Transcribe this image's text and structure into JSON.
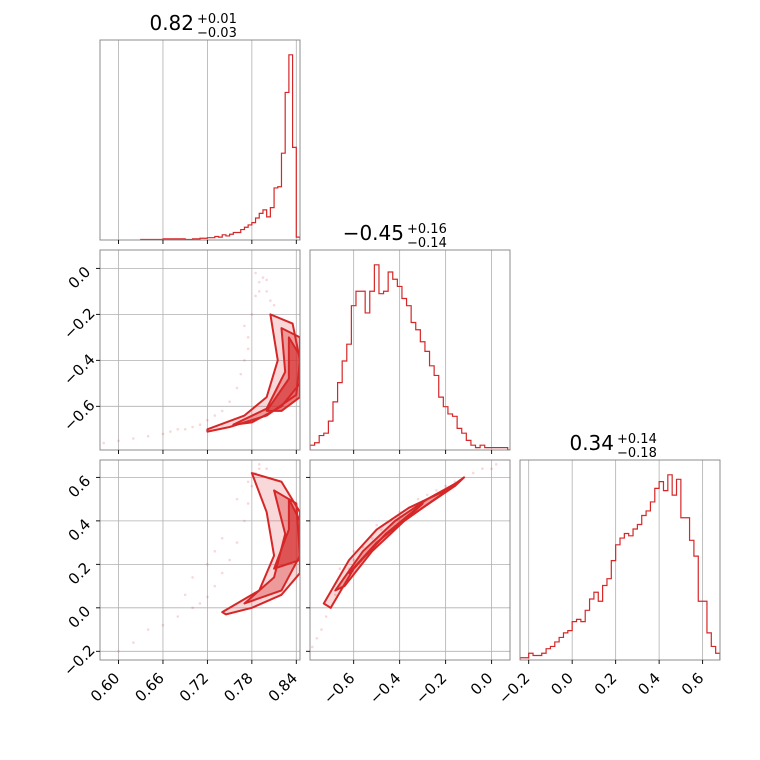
{
  "chart_data": {
    "type": "corner",
    "color": "#d62728",
    "grid": true,
    "parameters": [
      {
        "range": [
          0.575,
          0.845
        ],
        "ticks": [
          0.6,
          0.66,
          0.72,
          0.78,
          0.84
        ],
        "tick_labels": [
          "0.60",
          "0.66",
          "0.72",
          "0.78",
          "0.84"
        ],
        "title": {
          "value": "0.82",
          "plus": "+0.01",
          "minus": "−0.03"
        },
        "histogram": {
          "edges": [
            0.63,
            0.64,
            0.65,
            0.66,
            0.67,
            0.68,
            0.69,
            0.7,
            0.71,
            0.72,
            0.725,
            0.73,
            0.735,
            0.74,
            0.745,
            0.75,
            0.755,
            0.76,
            0.765,
            0.77,
            0.775,
            0.78,
            0.785,
            0.79,
            0.795,
            0.8,
            0.805,
            0.81,
            0.815,
            0.82,
            0.825,
            0.83,
            0.835,
            0.84,
            0.845
          ],
          "counts": [
            1,
            1,
            1,
            2,
            2,
            2,
            1,
            2,
            3,
            4,
            4,
            6,
            5,
            9,
            7,
            10,
            13,
            13,
            18,
            22,
            26,
            30,
            38,
            46,
            52,
            40,
            56,
            90,
            92,
            150,
            255,
            320,
            160,
            5
          ]
        }
      },
      {
        "range": [
          -0.79,
          0.08
        ],
        "ticks": [
          -0.6,
          -0.4,
          -0.2,
          0.0
        ],
        "tick_labels": [
          "−0.6",
          "−0.4",
          "−0.2",
          "0.0"
        ],
        "title": {
          "value": "−0.45",
          "plus": "+0.16",
          "minus": "−0.14"
        },
        "histogram": {
          "edges": [
            -0.79,
            -0.77,
            -0.75,
            -0.73,
            -0.71,
            -0.69,
            -0.67,
            -0.65,
            -0.63,
            -0.61,
            -0.59,
            -0.57,
            -0.55,
            -0.53,
            -0.51,
            -0.49,
            -0.47,
            -0.45,
            -0.43,
            -0.41,
            -0.39,
            -0.37,
            -0.35,
            -0.33,
            -0.31,
            -0.29,
            -0.27,
            -0.25,
            -0.23,
            -0.21,
            -0.19,
            -0.17,
            -0.15,
            -0.13,
            -0.11,
            -0.09,
            -0.07,
            -0.05,
            -0.03,
            -0.01,
            0.01,
            0.03,
            0.05,
            0.07,
            0.08
          ],
          "counts": [
            2,
            3,
            6,
            7,
            12,
            20,
            28,
            37,
            44,
            60,
            66,
            66,
            57,
            66,
            77,
            65,
            66,
            74,
            71,
            68,
            63,
            60,
            53,
            50,
            45,
            41,
            35,
            31,
            22,
            18,
            15,
            14,
            9,
            7,
            4,
            2,
            1,
            2,
            1,
            1,
            1,
            1,
            1,
            0
          ]
        }
      },
      {
        "range": [
          -0.24,
          0.68
        ],
        "ticks": [
          -0.2,
          0.0,
          0.2,
          0.4,
          0.6
        ],
        "tick_labels": [
          "−0.2",
          "0.0",
          "0.2",
          "0.4",
          "0.6"
        ],
        "title": {
          "value": "0.34",
          "plus": "+0.14",
          "minus": "−0.18"
        },
        "histogram": {
          "edges": [
            -0.24,
            -0.22,
            -0.2,
            -0.18,
            -0.16,
            -0.14,
            -0.12,
            -0.1,
            -0.08,
            -0.06,
            -0.04,
            -0.02,
            0.0,
            0.02,
            0.04,
            0.06,
            0.08,
            0.1,
            0.12,
            0.14,
            0.16,
            0.18,
            0.2,
            0.22,
            0.24,
            0.26,
            0.28,
            0.3,
            0.32,
            0.34,
            0.36,
            0.38,
            0.4,
            0.42,
            0.44,
            0.46,
            0.48,
            0.5,
            0.52,
            0.54,
            0.56,
            0.58,
            0.6,
            0.62,
            0.64,
            0.66,
            0.68
          ],
          "counts": [
            1,
            1,
            3,
            2,
            2,
            3,
            5,
            6,
            8,
            10,
            12,
            13,
            17,
            18,
            17,
            22,
            27,
            30,
            26,
            33,
            36,
            44,
            51,
            54,
            56,
            55,
            58,
            60,
            64,
            66,
            70,
            76,
            79,
            75,
            82,
            73,
            80,
            63,
            63,
            53,
            46,
            26,
            26,
            12,
            6,
            3
          ]
        }
      }
    ],
    "contours_2d": [
      {
        "x_param": 0,
        "y_param": 1,
        "levels": [
          [
            [
              0.72,
              -0.7
            ],
            [
              0.77,
              -0.64
            ],
            [
              0.8,
              -0.56
            ],
            [
              0.815,
              -0.4
            ],
            [
              0.805,
              -0.2
            ],
            [
              0.835,
              -0.24
            ],
            [
              0.845,
              -0.4
            ],
            [
              0.84,
              -0.55
            ],
            [
              0.8,
              -0.64
            ],
            [
              0.75,
              -0.69
            ],
            [
              0.72,
              -0.71
            ]
          ],
          [
            [
              0.755,
              -0.68
            ],
            [
              0.8,
              -0.61
            ],
            [
              0.825,
              -0.45
            ],
            [
              0.82,
              -0.26
            ],
            [
              0.845,
              -0.3
            ],
            [
              0.845,
              -0.5
            ],
            [
              0.82,
              -0.6
            ],
            [
              0.78,
              -0.67
            ]
          ],
          [
            [
              0.8,
              -0.62
            ],
            [
              0.83,
              -0.48
            ],
            [
              0.83,
              -0.3
            ],
            [
              0.845,
              -0.38
            ],
            [
              0.845,
              -0.56
            ],
            [
              0.82,
              -0.62
            ]
          ]
        ],
        "scatter_x": [
          0.58,
          0.6,
          0.62,
          0.64,
          0.66,
          0.67,
          0.68,
          0.69,
          0.7,
          0.71,
          0.72,
          0.73,
          0.74,
          0.75,
          0.76,
          0.765,
          0.77,
          0.775,
          0.78,
          0.785,
          0.79,
          0.795,
          0.8,
          0.8,
          0.805,
          0.81,
          0.785,
          0.79,
          0.77,
          0.775
        ],
        "scatter_y": [
          -0.76,
          -0.75,
          -0.74,
          -0.73,
          -0.72,
          -0.71,
          -0.7,
          -0.7,
          -0.69,
          -0.68,
          -0.66,
          -0.64,
          -0.62,
          -0.58,
          -0.52,
          -0.46,
          -0.4,
          -0.3,
          -0.2,
          -0.12,
          -0.06,
          -0.04,
          -0.05,
          -0.1,
          -0.14,
          -0.16,
          -0.02,
          -0.1,
          -0.25,
          -0.35
        ]
      },
      {
        "x_param": 0,
        "y_param": 2,
        "levels": [
          [
            [
              0.74,
              -0.02
            ],
            [
              0.79,
              0.08
            ],
            [
              0.81,
              0.24
            ],
            [
              0.8,
              0.44
            ],
            [
              0.78,
              0.62
            ],
            [
              0.82,
              0.58
            ],
            [
              0.845,
              0.44
            ],
            [
              0.845,
              0.16
            ],
            [
              0.82,
              0.06
            ],
            [
              0.78,
              0.0
            ],
            [
              0.745,
              -0.03
            ]
          ],
          [
            [
              0.77,
              0.02
            ],
            [
              0.81,
              0.14
            ],
            [
              0.825,
              0.34
            ],
            [
              0.81,
              0.54
            ],
            [
              0.84,
              0.48
            ],
            [
              0.845,
              0.24
            ],
            [
              0.82,
              0.08
            ]
          ],
          [
            [
              0.81,
              0.18
            ],
            [
              0.83,
              0.36
            ],
            [
              0.83,
              0.5
            ],
            [
              0.845,
              0.4
            ],
            [
              0.845,
              0.22
            ]
          ]
        ],
        "scatter_x": [
          0.6,
          0.62,
          0.64,
          0.66,
          0.68,
          0.7,
          0.71,
          0.72,
          0.73,
          0.74,
          0.75,
          0.76,
          0.77,
          0.775,
          0.78,
          0.785,
          0.79,
          0.7,
          0.72,
          0.74,
          0.69,
          0.73,
          0.76,
          0.775,
          0.79,
          0.8
        ],
        "scatter_y": [
          -0.2,
          -0.16,
          -0.1,
          -0.08,
          -0.04,
          0.0,
          0.02,
          0.05,
          0.1,
          0.16,
          0.22,
          0.3,
          0.4,
          0.48,
          0.56,
          0.62,
          0.64,
          0.14,
          0.2,
          0.32,
          0.06,
          0.26,
          0.5,
          0.58,
          0.66,
          0.64
        ]
      },
      {
        "x_param": 1,
        "y_param": 2,
        "levels": [
          [
            [
              -0.73,
              0.02
            ],
            [
              -0.62,
              0.22
            ],
            [
              -0.5,
              0.36
            ],
            [
              -0.36,
              0.46
            ],
            [
              -0.2,
              0.54
            ],
            [
              -0.12,
              0.6
            ],
            [
              -0.16,
              0.56
            ],
            [
              -0.3,
              0.46
            ],
            [
              -0.46,
              0.34
            ],
            [
              -0.6,
              0.18
            ],
            [
              -0.7,
              0.0
            ]
          ],
          [
            [
              -0.68,
              0.08
            ],
            [
              -0.56,
              0.26
            ],
            [
              -0.42,
              0.4
            ],
            [
              -0.28,
              0.5
            ],
            [
              -0.16,
              0.57
            ],
            [
              -0.22,
              0.52
            ],
            [
              -0.38,
              0.4
            ],
            [
              -0.52,
              0.26
            ],
            [
              -0.64,
              0.1
            ]
          ],
          [
            [
              -0.62,
              0.16
            ],
            [
              -0.46,
              0.34
            ],
            [
              -0.3,
              0.48
            ],
            [
              -0.34,
              0.44
            ],
            [
              -0.5,
              0.3
            ]
          ]
        ],
        "scatter_x": [
          -0.78,
          -0.76,
          -0.74,
          -0.72,
          -0.7,
          -0.68,
          -0.66,
          -0.64,
          -0.62,
          -0.6,
          -0.56,
          -0.52,
          -0.48,
          -0.44,
          -0.4,
          -0.36,
          -0.32,
          -0.28,
          -0.24,
          -0.2,
          -0.16,
          -0.12,
          -0.08,
          -0.04,
          0.0,
          0.02,
          -0.66,
          -0.6,
          -0.5,
          -0.4
        ],
        "scatter_y": [
          -0.18,
          -0.14,
          -0.1,
          -0.04,
          0.0,
          0.06,
          0.1,
          0.14,
          0.18,
          0.22,
          0.28,
          0.32,
          0.36,
          0.4,
          0.44,
          0.46,
          0.5,
          0.52,
          0.54,
          0.56,
          0.58,
          0.6,
          0.62,
          0.64,
          0.64,
          0.66,
          0.18,
          0.26,
          0.38,
          0.42
        ]
      }
    ]
  }
}
